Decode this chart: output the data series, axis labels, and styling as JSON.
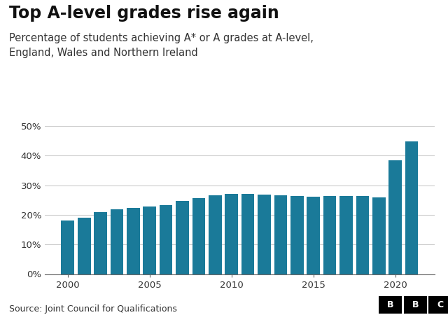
{
  "title": "Top A-level grades rise again",
  "subtitle": "Percentage of students achieving A* or A grades at A-level,\nEngland, Wales and Northern Ireland",
  "source": "Source: Joint Council for Qualifications",
  "years": [
    2000,
    2001,
    2002,
    2003,
    2004,
    2005,
    2006,
    2007,
    2008,
    2009,
    2010,
    2011,
    2012,
    2013,
    2014,
    2015,
    2016,
    2017,
    2018,
    2019,
    2020,
    2021
  ],
  "values": [
    18.0,
    19.0,
    21.0,
    21.8,
    22.4,
    22.8,
    23.3,
    24.6,
    25.6,
    26.5,
    27.0,
    27.0,
    26.9,
    26.5,
    26.3,
    26.2,
    26.3,
    26.3,
    26.4,
    25.9,
    38.5,
    44.8
  ],
  "bar_color": "#1a7a99",
  "background_color": "#ffffff",
  "ylim": [
    0,
    50
  ],
  "yticks": [
    0,
    10,
    20,
    30,
    40,
    50
  ],
  "ytick_labels": [
    "0%",
    "10%",
    "20%",
    "30%",
    "40%",
    "50%"
  ],
  "xticks": [
    2000,
    2005,
    2010,
    2015,
    2020
  ],
  "title_fontsize": 17,
  "subtitle_fontsize": 10.5,
  "source_fontsize": 9,
  "tick_fontsize": 9.5,
  "grid_color": "#cccccc",
  "xlim_left": 1998.6,
  "xlim_right": 2022.4
}
